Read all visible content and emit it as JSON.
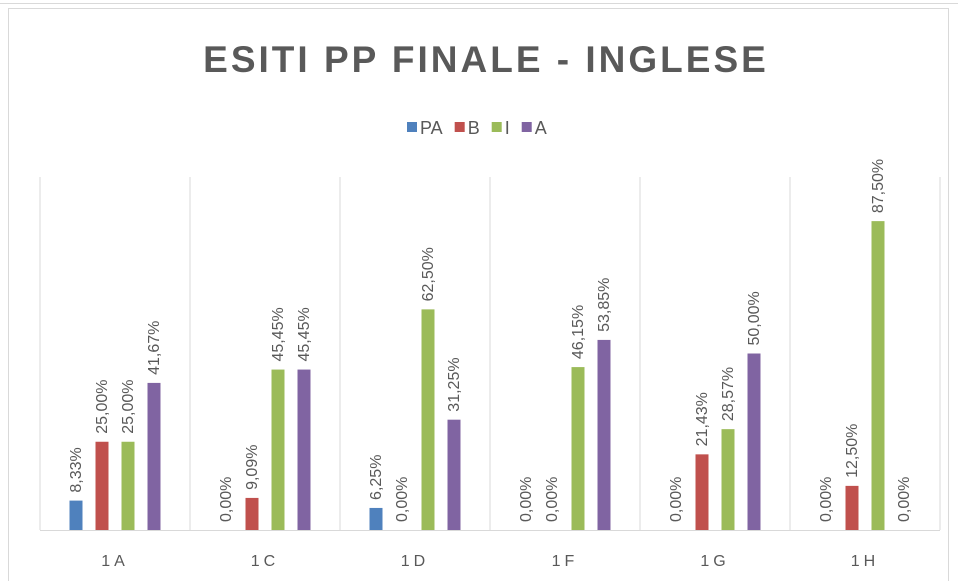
{
  "chart_data": {
    "type": "bar",
    "title": "ESITI PP FINALE - INGLESE",
    "categories": [
      "1A",
      "1C",
      "1D",
      "1F",
      "1G",
      "1H"
    ],
    "series": [
      {
        "name": "PA",
        "color": "#4f81bd",
        "values": [
          8.33,
          0,
          6.25,
          0,
          0,
          0
        ],
        "value_labels": [
          "8,33%",
          "0,00%",
          "6,25%",
          "0,00%",
          "0,00%",
          "0,00%"
        ]
      },
      {
        "name": "B",
        "color": "#c0504d",
        "values": [
          25,
          9.09,
          0,
          0,
          21.43,
          12.5
        ],
        "value_labels": [
          "25,00%",
          "9,09%",
          "0,00%",
          "0,00%",
          "21,43%",
          "12,50%"
        ]
      },
      {
        "name": "I",
        "color": "#9bbb59",
        "values": [
          25,
          45.45,
          62.5,
          46.15,
          28.57,
          87.5
        ],
        "value_labels": [
          "25,00%",
          "45,45%",
          "62,50%",
          "46,15%",
          "28,57%",
          "87,50%"
        ]
      },
      {
        "name": "A",
        "color": "#8064a2",
        "values": [
          41.67,
          45.45,
          31.25,
          53.85,
          50,
          0
        ],
        "value_labels": [
          "41,67%",
          "45,45%",
          "31,25%",
          "53,85%",
          "50,00%",
          "0,00%"
        ]
      }
    ],
    "ylim": [
      0,
      100
    ],
    "legend": "top"
  }
}
